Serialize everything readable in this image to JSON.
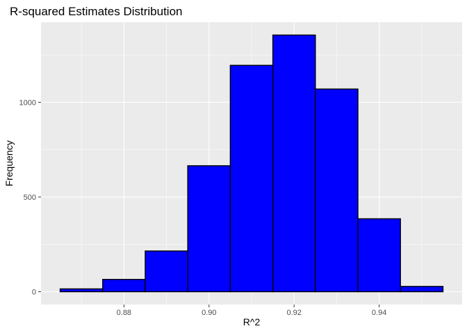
{
  "chart_data": {
    "type": "bar",
    "title": "R-squared Estimates Distribution",
    "xlabel": "R^2",
    "ylabel": "Frequency",
    "bins": [
      {
        "start": 0.865,
        "end": 0.875,
        "count": 15
      },
      {
        "start": 0.875,
        "end": 0.885,
        "count": 65
      },
      {
        "start": 0.885,
        "end": 0.895,
        "count": 215
      },
      {
        "start": 0.895,
        "end": 0.905,
        "count": 665
      },
      {
        "start": 0.905,
        "end": 0.915,
        "count": 1195
      },
      {
        "start": 0.915,
        "end": 0.925,
        "count": 1355
      },
      {
        "start": 0.925,
        "end": 0.935,
        "count": 1070
      },
      {
        "start": 0.935,
        "end": 0.945,
        "count": 385
      },
      {
        "start": 0.945,
        "end": 0.955,
        "count": 28
      }
    ],
    "xlim": [
      0.8605,
      0.9595
    ],
    "ylim": [
      -67.75,
      1422.75
    ],
    "x_ticks": [
      0.88,
      0.9,
      0.92,
      0.94
    ],
    "x_tick_labels": [
      "0.88",
      "0.90",
      "0.92",
      "0.94"
    ],
    "y_ticks": [
      0,
      500,
      1000
    ],
    "y_tick_labels": [
      "0",
      "500",
      "1000"
    ],
    "bar_fill": "#0000ff",
    "bar_outline": "#000000",
    "panel_background": "#ebebeb",
    "grid_color": "#ffffff",
    "grid": true,
    "legend": "none"
  }
}
